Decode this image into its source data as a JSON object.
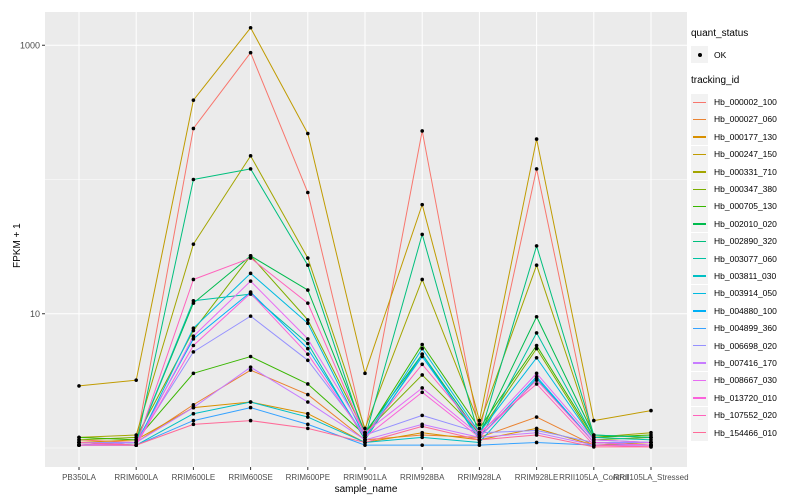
{
  "figure": {
    "background": "#FFFFFF",
    "panel_bg": "#EBEBEB",
    "grid_color": "#FFFFFF",
    "axis_text_color": "#4D4D4D",
    "tick_color": "#333333",
    "title_color": "#000000",
    "point_color": "#000000",
    "legend_key_bg": "#F2F2F2"
  },
  "chart_data": {
    "type": "line",
    "title": "",
    "xlabel": "sample_name",
    "ylabel": "FPKM + 1",
    "y_scale": "log10",
    "ylim": [
      0.93,
      1780
    ],
    "grid": true,
    "legend_position": "right",
    "y_tick_values": [
      1000,
      10
    ],
    "y_tick_labels": [
      "1000",
      "10"
    ],
    "y_minor_values": [
      100,
      1
    ],
    "categories": [
      "PB350LA",
      "RRIM600LA",
      "RRIM600LE",
      "RRIM600SE",
      "RRIM600PE",
      "RRIM901LA",
      "RRIM928BA",
      "RRIM928LA",
      "RRIM928LE",
      "RRII105LA_Control",
      "RRII105LA_Stressed"
    ],
    "marker": "black-point",
    "series": [
      {
        "name": "Hb_000002_100",
        "color": "#F8766D",
        "values": [
          1.15,
          1.1,
          240,
          880,
          80,
          1.3,
          230,
          1.3,
          120,
          1.1,
          1.05
        ]
      },
      {
        "name": "Hb_000027_060",
        "color": "#EA8331",
        "values": [
          1.05,
          1.1,
          2.1,
          3.8,
          2.5,
          1.15,
          1.25,
          1.2,
          1.7,
          1.05,
          1.05
        ]
      },
      {
        "name": "Hb_000177_130",
        "color": "#D89000",
        "values": [
          1.1,
          1.15,
          2.0,
          2.2,
          1.8,
          1.1,
          1.3,
          1.15,
          1.4,
          1.05,
          1.1
        ]
      },
      {
        "name": "Hb_000247_150",
        "color": "#C09B00",
        "values": [
          2.9,
          3.2,
          390,
          1350,
          220,
          3.6,
          65,
          1.6,
          200,
          1.6,
          1.9
        ]
      },
      {
        "name": "Hb_000331_710",
        "color": "#A3A500",
        "values": [
          1.2,
          1.25,
          33,
          150,
          26,
          1.4,
          18,
          1.5,
          23,
          1.2,
          1.3
        ]
      },
      {
        "name": "Hb_000347_380",
        "color": "#7CAE00",
        "values": [
          1.15,
          1.2,
          7.5,
          27,
          9.0,
          1.3,
          3.5,
          1.3,
          5.5,
          1.15,
          1.2
        ]
      },
      {
        "name": "Hb_000705_130",
        "color": "#39B600",
        "values": [
          1.2,
          1.15,
          3.6,
          4.8,
          3.0,
          1.25,
          5.9,
          1.4,
          5.8,
          1.2,
          1.25
        ]
      },
      {
        "name": "Hb_002010_020",
        "color": "#00BB4E",
        "values": [
          1.1,
          1.1,
          12,
          27,
          15,
          1.3,
          5.0,
          1.25,
          9.5,
          1.25,
          1.2
        ]
      },
      {
        "name": "Hb_002890_320",
        "color": "#00BF7D",
        "values": [
          1.1,
          1.05,
          100,
          120,
          23,
          1.2,
          39,
          1.2,
          32,
          1.25,
          1.2
        ]
      },
      {
        "name": "Hb_003077_060",
        "color": "#00C1A3",
        "values": [
          1.05,
          1.1,
          12.5,
          14,
          6.0,
          1.15,
          5.0,
          1.15,
          7.2,
          1.2,
          1.15
        ]
      },
      {
        "name": "Hb_003811_030",
        "color": "#00BFC4",
        "values": [
          1.05,
          1.05,
          1.8,
          2.2,
          1.7,
          1.1,
          1.2,
          1.1,
          3.3,
          1.1,
          1.1
        ]
      },
      {
        "name": "Hb_003914_050",
        "color": "#00BAE0",
        "values": [
          1.1,
          1.05,
          7.8,
          20,
          8.5,
          1.2,
          5.5,
          1.3,
          4.7,
          1.15,
          1.1
        ]
      },
      {
        "name": "Hb_004880_100",
        "color": "#00B0F6",
        "values": [
          1.05,
          1.1,
          6.5,
          14.5,
          5.5,
          1.2,
          4.8,
          1.2,
          3.4,
          1.1,
          1.05
        ]
      },
      {
        "name": "Hb_004899_360",
        "color": "#35A2FF",
        "values": [
          1.05,
          1.05,
          1.6,
          2.0,
          1.5,
          1.05,
          1.05,
          1.05,
          1.1,
          1.05,
          1.05
        ]
      },
      {
        "name": "Hb_006698_020",
        "color": "#9590FF",
        "values": [
          1.1,
          1.1,
          5.2,
          9.6,
          4.5,
          1.25,
          1.75,
          1.3,
          1.35,
          1.1,
          1.1
        ]
      },
      {
        "name": "Hb_007416_170",
        "color": "#C77CFF",
        "values": [
          1.05,
          1.1,
          2.0,
          4.0,
          2.2,
          1.15,
          1.5,
          1.2,
          1.3,
          1.05,
          1.05
        ]
      },
      {
        "name": "Hb_008667_030",
        "color": "#E76BF3",
        "values": [
          1.1,
          1.05,
          6.8,
          17.5,
          6.5,
          1.3,
          2.8,
          1.25,
          3.6,
          1.15,
          1.1
        ]
      },
      {
        "name": "Hb_013720_010",
        "color": "#FA62DB",
        "values": [
          1.05,
          1.05,
          5.8,
          14.2,
          5.0,
          1.2,
          2.6,
          1.2,
          3.2,
          1.1,
          1.05
        ]
      },
      {
        "name": "Hb_107552_020",
        "color": "#FF62BC",
        "values": [
          1.05,
          1.05,
          18,
          26,
          12,
          1.25,
          4.2,
          1.3,
          3.0,
          1.05,
          1.02
        ]
      },
      {
        "name": "Hb_154466_010",
        "color": "#FF6A98",
        "values": [
          1.1,
          1.05,
          1.5,
          1.6,
          1.4,
          1.1,
          1.45,
          1.15,
          1.25,
          1.02,
          1.02
        ]
      }
    ],
    "legend": {
      "quant_status_title": "quant_status",
      "quant_status_items": [
        {
          "label": "OK",
          "marker": "point"
        }
      ],
      "tracking_id_title": "tracking_id"
    }
  }
}
